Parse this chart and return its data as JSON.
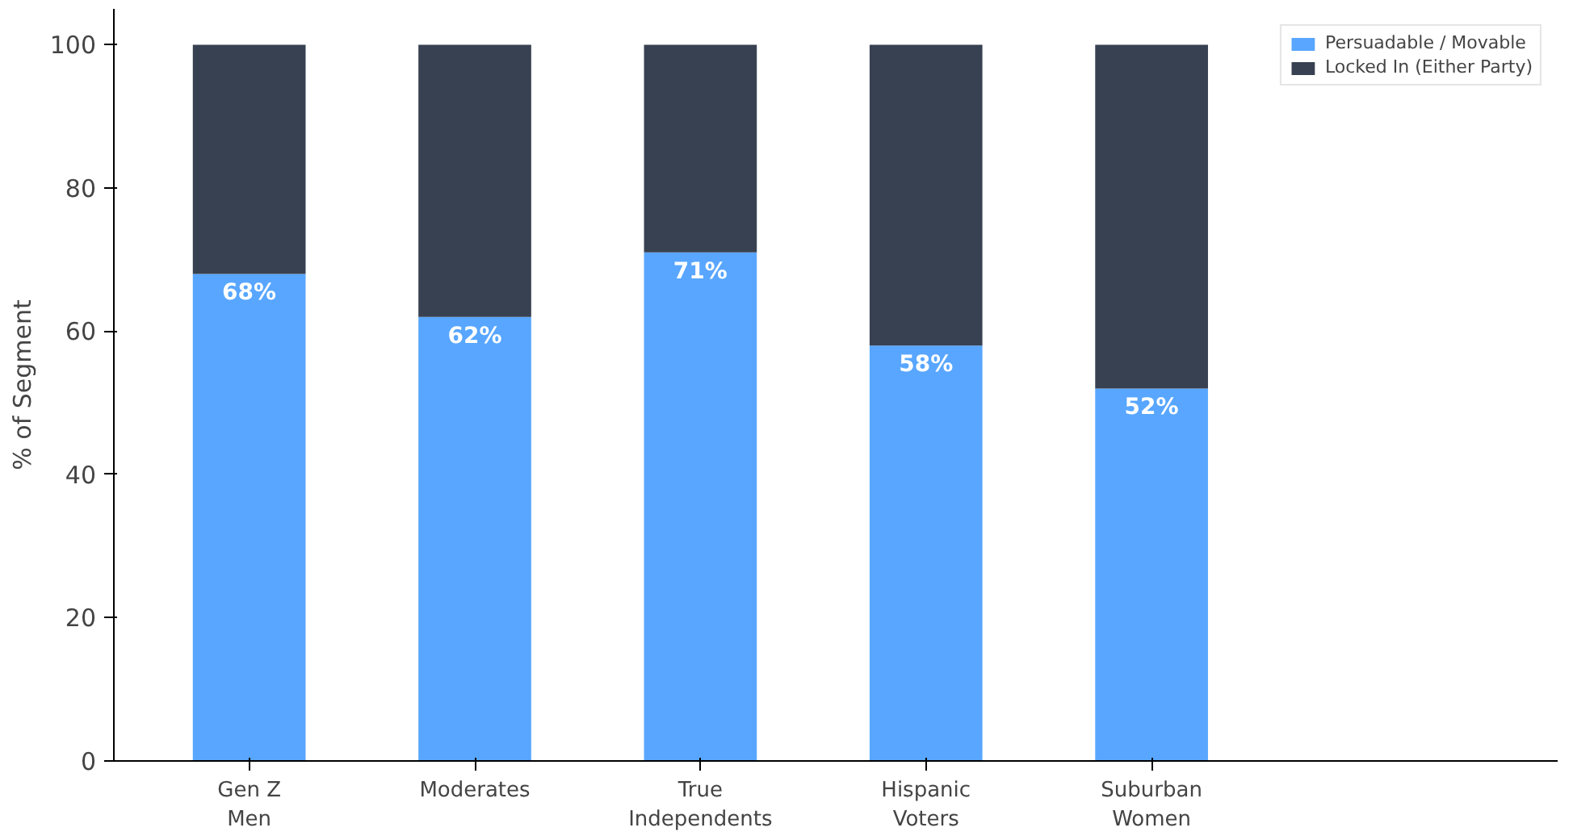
{
  "chart_data": {
    "type": "bar",
    "stacked": true,
    "ylabel": "% of Segment",
    "categories": [
      "Gen Z\nMen",
      "Moderates",
      "True\nIndependents",
      "Hispanic\nVoters",
      "Suburban\nWomen"
    ],
    "series": [
      {
        "name": "Persuadable / Movable",
        "color": "#58a6ff",
        "values": [
          68,
          62,
          71,
          58,
          52
        ],
        "value_labels": [
          "68%",
          "62%",
          "71%",
          "58%",
          "52%"
        ]
      },
      {
        "name": "Locked In (Either Party)",
        "color": "#374151",
        "values": [
          32,
          38,
          29,
          42,
          48
        ]
      }
    ],
    "ylim": [
      0,
      105
    ],
    "yticks": [
      0,
      20,
      40,
      60,
      80,
      100
    ],
    "grid": false,
    "legend": "top right"
  }
}
